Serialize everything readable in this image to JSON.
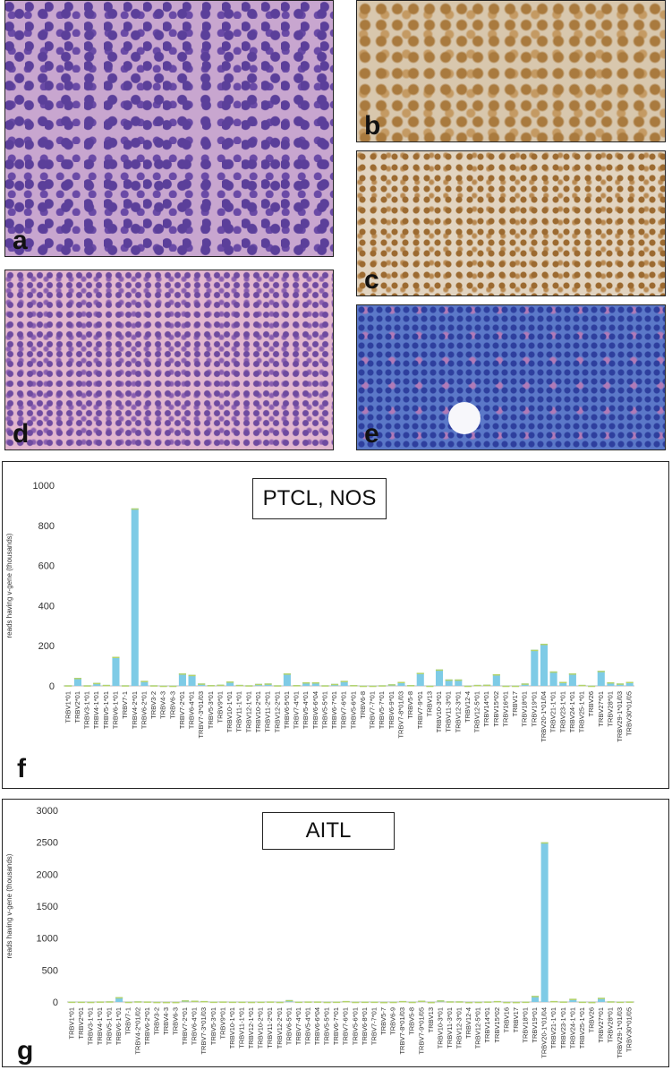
{
  "panels": {
    "a": {
      "letter": "a"
    },
    "b": {
      "letter": "b"
    },
    "c": {
      "letter": "c"
    },
    "d": {
      "letter": "d"
    },
    "e": {
      "letter": "e"
    }
  },
  "chart_data": [
    {
      "type": "bar",
      "title": "PTCL, NOS",
      "panel_letter": "f",
      "ylabel": "reads having v-gene (thousands)",
      "ylim": [
        0,
        1000
      ],
      "yticks": [
        0,
        200,
        400,
        600,
        800,
        1000
      ],
      "colors": {
        "bar": "#7ecbe6",
        "highlight": "#b5d36a"
      },
      "categories": [
        "TRBV1*01",
        "TRBV2*01",
        "TRBV3-1*01",
        "TRBV4-1*01",
        "TRBV5-1*01",
        "TRBV6-1*01",
        "TRBV7-1",
        "TRBV4-2*01",
        "TRBV6-2*01",
        "TRBV3-2",
        "TRBV4-3",
        "TRBV6-3",
        "TRBV7-2*01",
        "TRBV6-4*01",
        "TRBV7-3*01/03",
        "TRBV5-3*01",
        "TRBV9*01",
        "TRBV10-1*01",
        "TRBV11-1*01",
        "TRBV12-1*01",
        "TRBV10-2*01",
        "TRBV11-2*01",
        "TRBV12-2*01",
        "TRBV6-5*01",
        "TRBV7-4*01",
        "TRBV5-4*01",
        "TRBV6-6*04",
        "TRBV5-5*01",
        "TRBV6-7*01",
        "TRBV7-6*01",
        "TRBV5-6*01",
        "TRBV6-8",
        "TRBV7-7*01",
        "TRBV5-7*01",
        "TRBV6-9*01",
        "TRBV7-8*01/03",
        "TRBV5-8",
        "TRBV7-9*01",
        "TRBV13",
        "TRBV10-3*01",
        "TRBV11-3*01",
        "TRBV12-3*01",
        "TRBV12-4",
        "TRBV12-5*01",
        "TRBV14*01",
        "TRBV15*02",
        "TRBV16*01",
        "TRBV17",
        "TRBV18*01",
        "TRBV19*01",
        "TRBV20-1*01/04",
        "TRBV21-1*01",
        "TRBV23-1*01",
        "TRBV24-1*01",
        "TRBV25-1*01",
        "TRBV26",
        "TRBV27*01",
        "TRBV28*01",
        "TRBV29-1*01/03",
        "TRBV30*01/05"
      ],
      "values": [
        3,
        40,
        3,
        15,
        5,
        145,
        3,
        885,
        25,
        3,
        1,
        1,
        62,
        55,
        12,
        4,
        6,
        22,
        5,
        3,
        10,
        12,
        3,
        62,
        4,
        18,
        18,
        3,
        10,
        25,
        4,
        1,
        1,
        3,
        8,
        20,
        4,
        65,
        1,
        82,
        32,
        32,
        1,
        5,
        6,
        58,
        1,
        1,
        12,
        180,
        210,
        72,
        20,
        62,
        5,
        1,
        75,
        18,
        12,
        20
      ]
    },
    {
      "type": "bar",
      "title": "AITL",
      "panel_letter": "g",
      "ylabel": "reads having v-gene (thousands)",
      "ylim": [
        0,
        3000
      ],
      "yticks": [
        0,
        500,
        1000,
        1500,
        2000,
        2500,
        3000
      ],
      "colors": {
        "bar": "#7ecbe6",
        "highlight": "#b5d36a"
      },
      "categories": [
        "TRBV1*01",
        "TRBV2*01",
        "TRBV3-1*01",
        "TRBV4-1*01",
        "TRBV5-1*01",
        "TRBV6-1*01",
        "TRBV7-1",
        "TRBV4-2*01/02",
        "TRBV6-2*01",
        "TRBV3-2",
        "TRBV4-3",
        "TRBV6-3",
        "TRBV7-2*01",
        "TRBV6-4*01",
        "TRBV7-3*01/03",
        "TRBV5-3*01",
        "TRBV9*01",
        "TRBV10-1*01",
        "TRBV11-1*01",
        "TRBV12-1*01",
        "TRBV10-2*01",
        "TRBV11-2*01",
        "TRBV12-2*01",
        "TRBV6-5*01",
        "TRBV7-4*01",
        "TRBV5-4*01",
        "TRBV6-6*04",
        "TRBV5-5*01",
        "TRBV6-7*01",
        "TRBV7-6*01",
        "TRBV5-6*01",
        "TRBV6-8*01",
        "TRBV7-7*01",
        "TRBV5-7",
        "TRBV6-9",
        "TRBV7-8*01/03",
        "TRBV5-8",
        "TRBV7-9*01/05",
        "TRBV13",
        "TRBV10-3*01",
        "TRBV11-3*01",
        "TRBV12-3*01",
        "TRBV12-4",
        "TRBV12-5*01",
        "TRBV14*01",
        "TRBV15*02",
        "TRBV16",
        "TRBV17",
        "TRBV18*01",
        "TRBV19*01",
        "TRBV20-1*01/04",
        "TRBV21-1*01",
        "TRBV23-1*01",
        "TRBV24-1*01",
        "TRBV25-1*01",
        "TRBV26",
        "TRBV27*01",
        "TRBV28*01",
        "TRBV29-1*01/03",
        "TRBV30*01/05"
      ],
      "values": [
        5,
        5,
        3,
        8,
        10,
        75,
        3,
        10,
        8,
        2,
        1,
        1,
        25,
        20,
        15,
        5,
        8,
        5,
        5,
        3,
        5,
        8,
        3,
        30,
        5,
        8,
        8,
        3,
        5,
        15,
        3,
        5,
        5,
        1,
        3,
        15,
        3,
        20,
        1,
        25,
        10,
        10,
        1,
        3,
        8,
        15,
        1,
        1,
        5,
        95,
        2500,
        15,
        8,
        50,
        5,
        1,
        65,
        10,
        5,
        8
      ]
    }
  ]
}
